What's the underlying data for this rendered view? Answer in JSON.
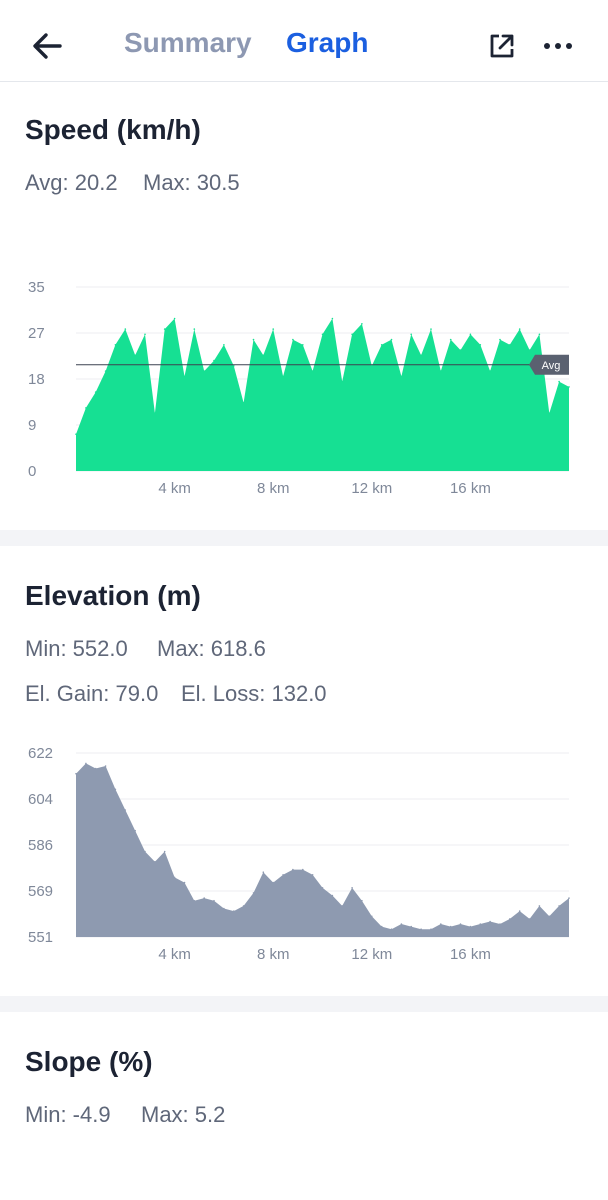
{
  "header": {
    "tabs": [
      {
        "label": "Summary",
        "active": false
      },
      {
        "label": "Graph",
        "active": true
      }
    ],
    "icons": {
      "back": "arrow-left-icon",
      "share": "external-link-icon",
      "more": "more-horizontal-icon"
    },
    "accent_color": "#1b5fe0",
    "inactive_tab_color": "#8d98b2"
  },
  "speed": {
    "title": "Speed (km/h)",
    "avg": "Avg: 20.2",
    "max": "Max: 30.5"
  },
  "elevation": {
    "title": "Elevation (m)",
    "min": "Min: 552.0",
    "max": "Max: 618.6",
    "gain": "El. Gain: 79.0",
    "loss": "El. Loss: 132.0"
  },
  "slope": {
    "title": "Slope (%)",
    "min": "Min: -4.9",
    "max": "Max: 5.2"
  },
  "chart_data": [
    {
      "type": "area",
      "title": "Speed (km/h)",
      "color": "#16e093",
      "xlabel": "",
      "ylabel": "",
      "x_unit": "km",
      "xlim": [
        0,
        20
      ],
      "ylim": [
        0,
        35
      ],
      "y_ticks": [
        "0",
        "9",
        "18",
        "27",
        "35"
      ],
      "x_ticks": [
        "4 km",
        "8 km",
        "12 km",
        "16 km"
      ],
      "x_tick_values": [
        4,
        8,
        12,
        16
      ],
      "avg_line": {
        "value": 20.2,
        "label": "Avg"
      },
      "x": [
        0,
        0.4,
        0.8,
        1.2,
        1.6,
        2.0,
        2.4,
        2.8,
        3.2,
        3.6,
        4.0,
        4.4,
        4.8,
        5.2,
        5.6,
        6.0,
        6.4,
        6.8,
        7.2,
        7.6,
        8.0,
        8.4,
        8.8,
        9.2,
        9.6,
        10.0,
        10.4,
        10.8,
        11.2,
        11.6,
        12.0,
        12.4,
        12.8,
        13.2,
        13.6,
        14.0,
        14.4,
        14.8,
        15.2,
        15.6,
        16.0,
        16.4,
        16.8,
        17.2,
        17.6,
        18.0,
        18.4,
        18.8,
        19.2,
        19.6,
        20.0
      ],
      "series": [
        {
          "values": [
            7,
            12,
            15,
            19,
            24,
            27,
            22,
            26,
            11,
            27,
            29,
            18,
            27,
            19,
            21,
            24,
            20,
            13,
            25,
            22,
            27,
            18,
            25,
            24,
            19,
            26,
            29,
            17,
            26,
            28,
            20,
            24,
            25,
            18,
            26,
            22,
            27,
            19,
            25,
            23,
            26,
            24,
            19,
            25,
            24,
            27,
            23,
            26,
            11,
            17,
            16
          ]
        }
      ]
    },
    {
      "type": "area",
      "title": "Elevation (m)",
      "color": "#8e9ab0",
      "xlabel": "",
      "ylabel": "",
      "x_unit": "km",
      "xlim": [
        0,
        20
      ],
      "ylim": [
        551,
        622
      ],
      "y_ticks": [
        "551",
        "569",
        "586",
        "604",
        "622"
      ],
      "x_ticks": [
        "4 km",
        "8 km",
        "12 km",
        "16 km"
      ],
      "x_tick_values": [
        4,
        8,
        12,
        16
      ],
      "x": [
        0,
        0.4,
        0.8,
        1.2,
        1.6,
        2.0,
        2.4,
        2.8,
        3.2,
        3.6,
        4.0,
        4.4,
        4.8,
        5.2,
        5.6,
        6.0,
        6.4,
        6.8,
        7.2,
        7.6,
        8.0,
        8.4,
        8.8,
        9.2,
        9.6,
        10.0,
        10.4,
        10.8,
        11.2,
        11.6,
        12.0,
        12.4,
        12.8,
        13.2,
        13.6,
        14.0,
        14.4,
        14.8,
        15.2,
        15.6,
        16.0,
        16.4,
        16.8,
        17.2,
        17.6,
        18.0,
        18.4,
        18.8,
        19.2,
        19.6,
        20.0
      ],
      "series": [
        {
          "values": [
            614,
            618,
            616,
            617,
            608,
            600,
            592,
            584,
            580,
            584,
            574,
            572,
            565,
            566,
            565,
            562,
            561,
            563,
            568,
            576,
            572,
            575,
            577,
            577,
            575,
            570,
            567,
            563,
            570,
            565,
            559,
            555,
            554,
            556,
            555,
            554,
            554,
            556,
            555,
            556,
            555,
            556,
            557,
            556,
            558,
            561,
            558,
            563,
            559,
            563,
            566
          ]
        }
      ]
    }
  ]
}
